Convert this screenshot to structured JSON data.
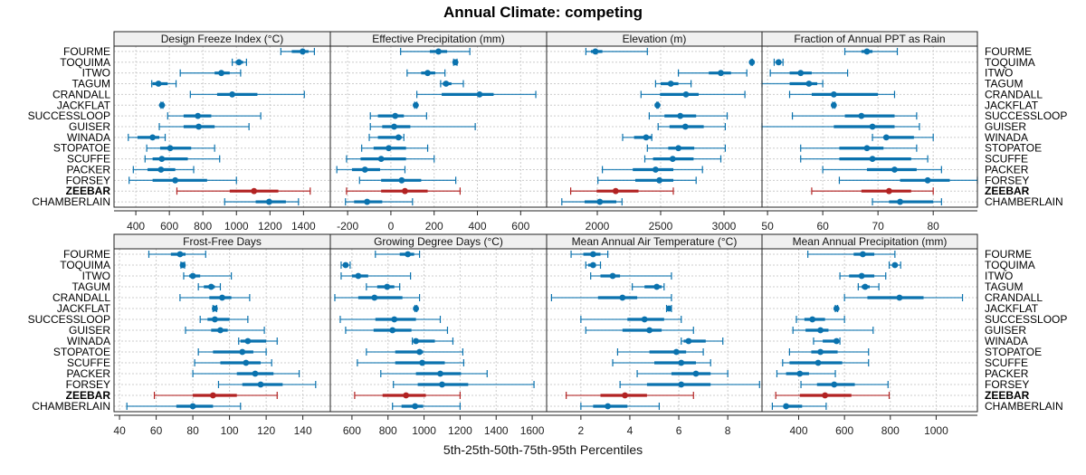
{
  "title": "Annual Climate: competing",
  "xlabel": "5th-25th-50th-75th-95th Percentiles",
  "colors": {
    "default": "#0a72ae",
    "highlight": "#b22222"
  },
  "chart_data": {
    "type": "dot-interval",
    "title": "Annual Climate: competing",
    "xlabel": "5th-25th-50th-75th-95th Percentiles",
    "grid": true,
    "legend": "none",
    "categories": [
      "FOURME",
      "TOQUIMA",
      "ITWO",
      "TAGUM",
      "CRANDALL",
      "JACKFLAT",
      "SUCCESSLOOP",
      "GUISER",
      "WINADA",
      "STOPATOE",
      "SCUFFE",
      "PACKER",
      "FORSEY",
      "ZEEBAR",
      "CHAMBERLAIN"
    ],
    "highlight": "ZEEBAR",
    "panels": [
      {
        "title": "Design Freeze Index (°C)",
        "xlim": [
          270,
          1560
        ],
        "ticks": [
          400,
          600,
          800,
          1000,
          1200,
          1400
        ],
        "values": [
          [
            1265,
            1330,
            1395,
            1430,
            1465
          ],
          [
            975,
            995,
            1015,
            1040,
            1060
          ],
          [
            665,
            870,
            910,
            960,
            1025
          ],
          [
            495,
            500,
            535,
            590,
            640
          ],
          [
            725,
            885,
            975,
            1125,
            1405
          ],
          [
            550,
            553,
            556,
            559,
            562
          ],
          [
            590,
            685,
            770,
            850,
            1145
          ],
          [
            540,
            685,
            775,
            870,
            1075
          ],
          [
            355,
            410,
            500,
            540,
            575
          ],
          [
            465,
            545,
            605,
            730,
            870
          ],
          [
            455,
            500,
            555,
            710,
            900
          ],
          [
            385,
            470,
            550,
            635,
            745
          ],
          [
            360,
            500,
            635,
            825,
            1000
          ],
          [
            645,
            960,
            1105,
            1250,
            1440
          ],
          [
            930,
            1115,
            1195,
            1295,
            1370
          ]
        ]
      },
      {
        "title": "Effective Precipitation (mm)",
        "xlim": [
          -280,
          720
        ],
        "ticks": [
          -200,
          0,
          200,
          400,
          600
        ],
        "values": [
          [
            45,
            180,
            220,
            260,
            365
          ],
          [
            290,
            293,
            298,
            303,
            306
          ],
          [
            75,
            140,
            170,
            205,
            250
          ],
          [
            230,
            240,
            255,
            280,
            335
          ],
          [
            120,
            235,
            410,
            475,
            670
          ],
          [
            110,
            112,
            115,
            118,
            120
          ],
          [
            -95,
            -60,
            20,
            60,
            165
          ],
          [
            -95,
            -40,
            15,
            90,
            390
          ],
          [
            -100,
            -60,
            35,
            50,
            60
          ],
          [
            -135,
            -80,
            -10,
            70,
            170
          ],
          [
            -205,
            -140,
            -45,
            70,
            200
          ],
          [
            -250,
            -180,
            -120,
            -50,
            65
          ],
          [
            -145,
            -45,
            50,
            140,
            300
          ],
          [
            -205,
            -45,
            65,
            170,
            320
          ],
          [
            -210,
            -170,
            -110,
            -40,
            100
          ]
        ]
      },
      {
        "title": "Elevation (m)",
        "xlim": [
          1600,
          3300
        ],
        "ticks": [
          2000,
          2500,
          3000
        ],
        "values": [
          [
            1910,
            1950,
            1985,
            2040,
            2395
          ],
          [
            3215,
            3217,
            3220,
            3223,
            3225
          ],
          [
            2640,
            2880,
            2975,
            3055,
            3180
          ],
          [
            2460,
            2500,
            2580,
            2640,
            2740
          ],
          [
            2345,
            2495,
            2700,
            2800,
            3165
          ],
          [
            2470,
            2473,
            2475,
            2478,
            2480
          ],
          [
            2410,
            2530,
            2655,
            2780,
            3025
          ],
          [
            2480,
            2570,
            2695,
            2840,
            3010
          ],
          [
            2200,
            2290,
            2385,
            2430,
            2430
          ],
          [
            2395,
            2560,
            2640,
            2765,
            3010
          ],
          [
            2375,
            2440,
            2595,
            2760,
            2975
          ],
          [
            2040,
            2280,
            2460,
            2600,
            2830
          ],
          [
            2005,
            2300,
            2490,
            2600,
            2780
          ],
          [
            1790,
            1995,
            2145,
            2325,
            2600
          ],
          [
            1720,
            1900,
            2020,
            2150,
            2195
          ]
        ]
      },
      {
        "title": "Fraction of Annual PPT as Rain",
        "xlim": [
          49,
          88
        ],
        "ticks": [
          50,
          60,
          70,
          80
        ],
        "values": [
          [
            64,
            67,
            68,
            69,
            73.5
          ],
          [
            51.2,
            51.6,
            52,
            52.4,
            52.8
          ],
          [
            50.5,
            54,
            56,
            58,
            64.5
          ],
          [
            49,
            54,
            57.5,
            59,
            60
          ],
          [
            54,
            58,
            62,
            70,
            73
          ],
          [
            61.8,
            61.9,
            62,
            62.1,
            62.2
          ],
          [
            54.5,
            64,
            67,
            73,
            77
          ],
          [
            49,
            62,
            69,
            73,
            77.5
          ],
          [
            69,
            71,
            71.5,
            76.5,
            80
          ],
          [
            56,
            63,
            68,
            71,
            77
          ],
          [
            56,
            63,
            69,
            76,
            79
          ],
          [
            60,
            68,
            73,
            77,
            81.5
          ],
          [
            63,
            74,
            79,
            83,
            88
          ],
          [
            58,
            67,
            72,
            76,
            80
          ],
          [
            69,
            72,
            74,
            80,
            81.5
          ]
        ]
      },
      {
        "title": "Frost-Free Days",
        "xlim": [
          37,
          155
        ],
        "ticks": [
          40,
          60,
          80,
          100,
          120,
          140
        ],
        "values": [
          [
            56,
            68,
            73,
            76,
            87
          ],
          [
            73.5,
            74,
            74.5,
            75,
            75.5
          ],
          [
            75,
            78,
            80,
            84,
            101
          ],
          [
            83,
            86,
            90,
            92,
            95
          ],
          [
            73,
            89,
            96,
            101,
            111
          ],
          [
            91,
            91.5,
            92,
            92.5,
            93
          ],
          [
            84,
            88,
            92,
            100,
            110
          ],
          [
            76,
            90,
            95,
            99,
            119
          ],
          [
            105,
            106,
            110,
            120,
            126
          ],
          [
            83,
            91,
            107,
            113,
            120
          ],
          [
            81,
            95,
            109,
            117,
            123
          ],
          [
            80,
            104,
            114,
            124,
            138
          ],
          [
            94,
            107,
            117,
            129,
            147
          ],
          [
            59,
            80,
            91,
            104,
            126
          ],
          [
            44,
            71,
            80,
            91,
            106
          ]
        ]
      },
      {
        "title": "Growing Degree Days (°C)",
        "xlim": [
          480,
          1680
        ],
        "ticks": [
          600,
          800,
          1000,
          1200,
          1400,
          1600
        ],
        "values": [
          [
            730,
            865,
            910,
            945,
            975
          ],
          [
            540,
            550,
            565,
            580,
            590
          ],
          [
            540,
            600,
            635,
            690,
            925
          ],
          [
            680,
            740,
            795,
            835,
            865
          ],
          [
            505,
            635,
            725,
            880,
            975
          ],
          [
            950,
            953,
            955,
            958,
            960
          ],
          [
            535,
            730,
            835,
            955,
            1090
          ],
          [
            565,
            720,
            825,
            930,
            1130
          ],
          [
            935,
            945,
            955,
            1060,
            1160
          ],
          [
            680,
            840,
            975,
            995,
            1215
          ],
          [
            630,
            840,
            990,
            1115,
            1220
          ],
          [
            760,
            955,
            1090,
            1205,
            1350
          ],
          [
            830,
            965,
            1100,
            1245,
            1610
          ],
          [
            615,
            770,
            900,
            1010,
            1200
          ],
          [
            825,
            875,
            950,
            995,
            1200
          ]
        ]
      },
      {
        "title": "Mean Annual Air Temperature (°C)",
        "xlim": [
          0.6,
          9.4
        ],
        "ticks": [
          2,
          4,
          6,
          8
        ],
        "values": [
          [
            1.6,
            2.1,
            2.5,
            2.8,
            3.1
          ],
          [
            2.2,
            2.3,
            2.5,
            2.6,
            2.8
          ],
          [
            2.4,
            2.8,
            3.3,
            3.6,
            5.7
          ],
          [
            4.1,
            4.6,
            5.1,
            5.3,
            5.4
          ],
          [
            0.8,
            2.7,
            3.7,
            4.3,
            5.7
          ],
          [
            5.5,
            5.55,
            5.6,
            5.65,
            5.7
          ],
          [
            2.0,
            3.9,
            4.6,
            5.4,
            6.1
          ],
          [
            2.2,
            3.7,
            4.8,
            5.3,
            6.6
          ],
          [
            6.1,
            6.2,
            6.4,
            7.1,
            7.8
          ],
          [
            3.5,
            4.8,
            5.9,
            6.3,
            7.0
          ],
          [
            3.3,
            5.0,
            6.1,
            6.7,
            7.3
          ],
          [
            4.3,
            5.7,
            6.7,
            7.3,
            8.0
          ],
          [
            3.6,
            4.7,
            6.1,
            7.3,
            9.3
          ],
          [
            1.4,
            2.8,
            3.8,
            4.7,
            6.6
          ],
          [
            2.0,
            2.5,
            3.1,
            3.9,
            5.2
          ]
        ]
      },
      {
        "title": "Mean Annual Precipitation (mm)",
        "xlim": [
          240,
          1180
        ],
        "ticks": [
          400,
          600,
          800,
          1000
        ],
        "values": [
          [
            440,
            640,
            680,
            730,
            820
          ],
          [
            795,
            808,
            820,
            832,
            845
          ],
          [
            580,
            620,
            675,
            730,
            780
          ],
          [
            660,
            675,
            690,
            710,
            750
          ],
          [
            600,
            700,
            840,
            945,
            1115
          ],
          [
            560,
            563,
            565,
            568,
            570
          ],
          [
            390,
            425,
            460,
            515,
            600
          ],
          [
            375,
            430,
            495,
            530,
            725
          ],
          [
            465,
            505,
            565,
            575,
            580
          ],
          [
            360,
            455,
            495,
            570,
            705
          ],
          [
            330,
            360,
            485,
            590,
            705
          ],
          [
            305,
            345,
            405,
            445,
            560
          ],
          [
            410,
            480,
            555,
            645,
            790
          ],
          [
            300,
            405,
            515,
            630,
            795
          ],
          [
            285,
            335,
            345,
            415,
            520
          ]
        ]
      }
    ]
  }
}
